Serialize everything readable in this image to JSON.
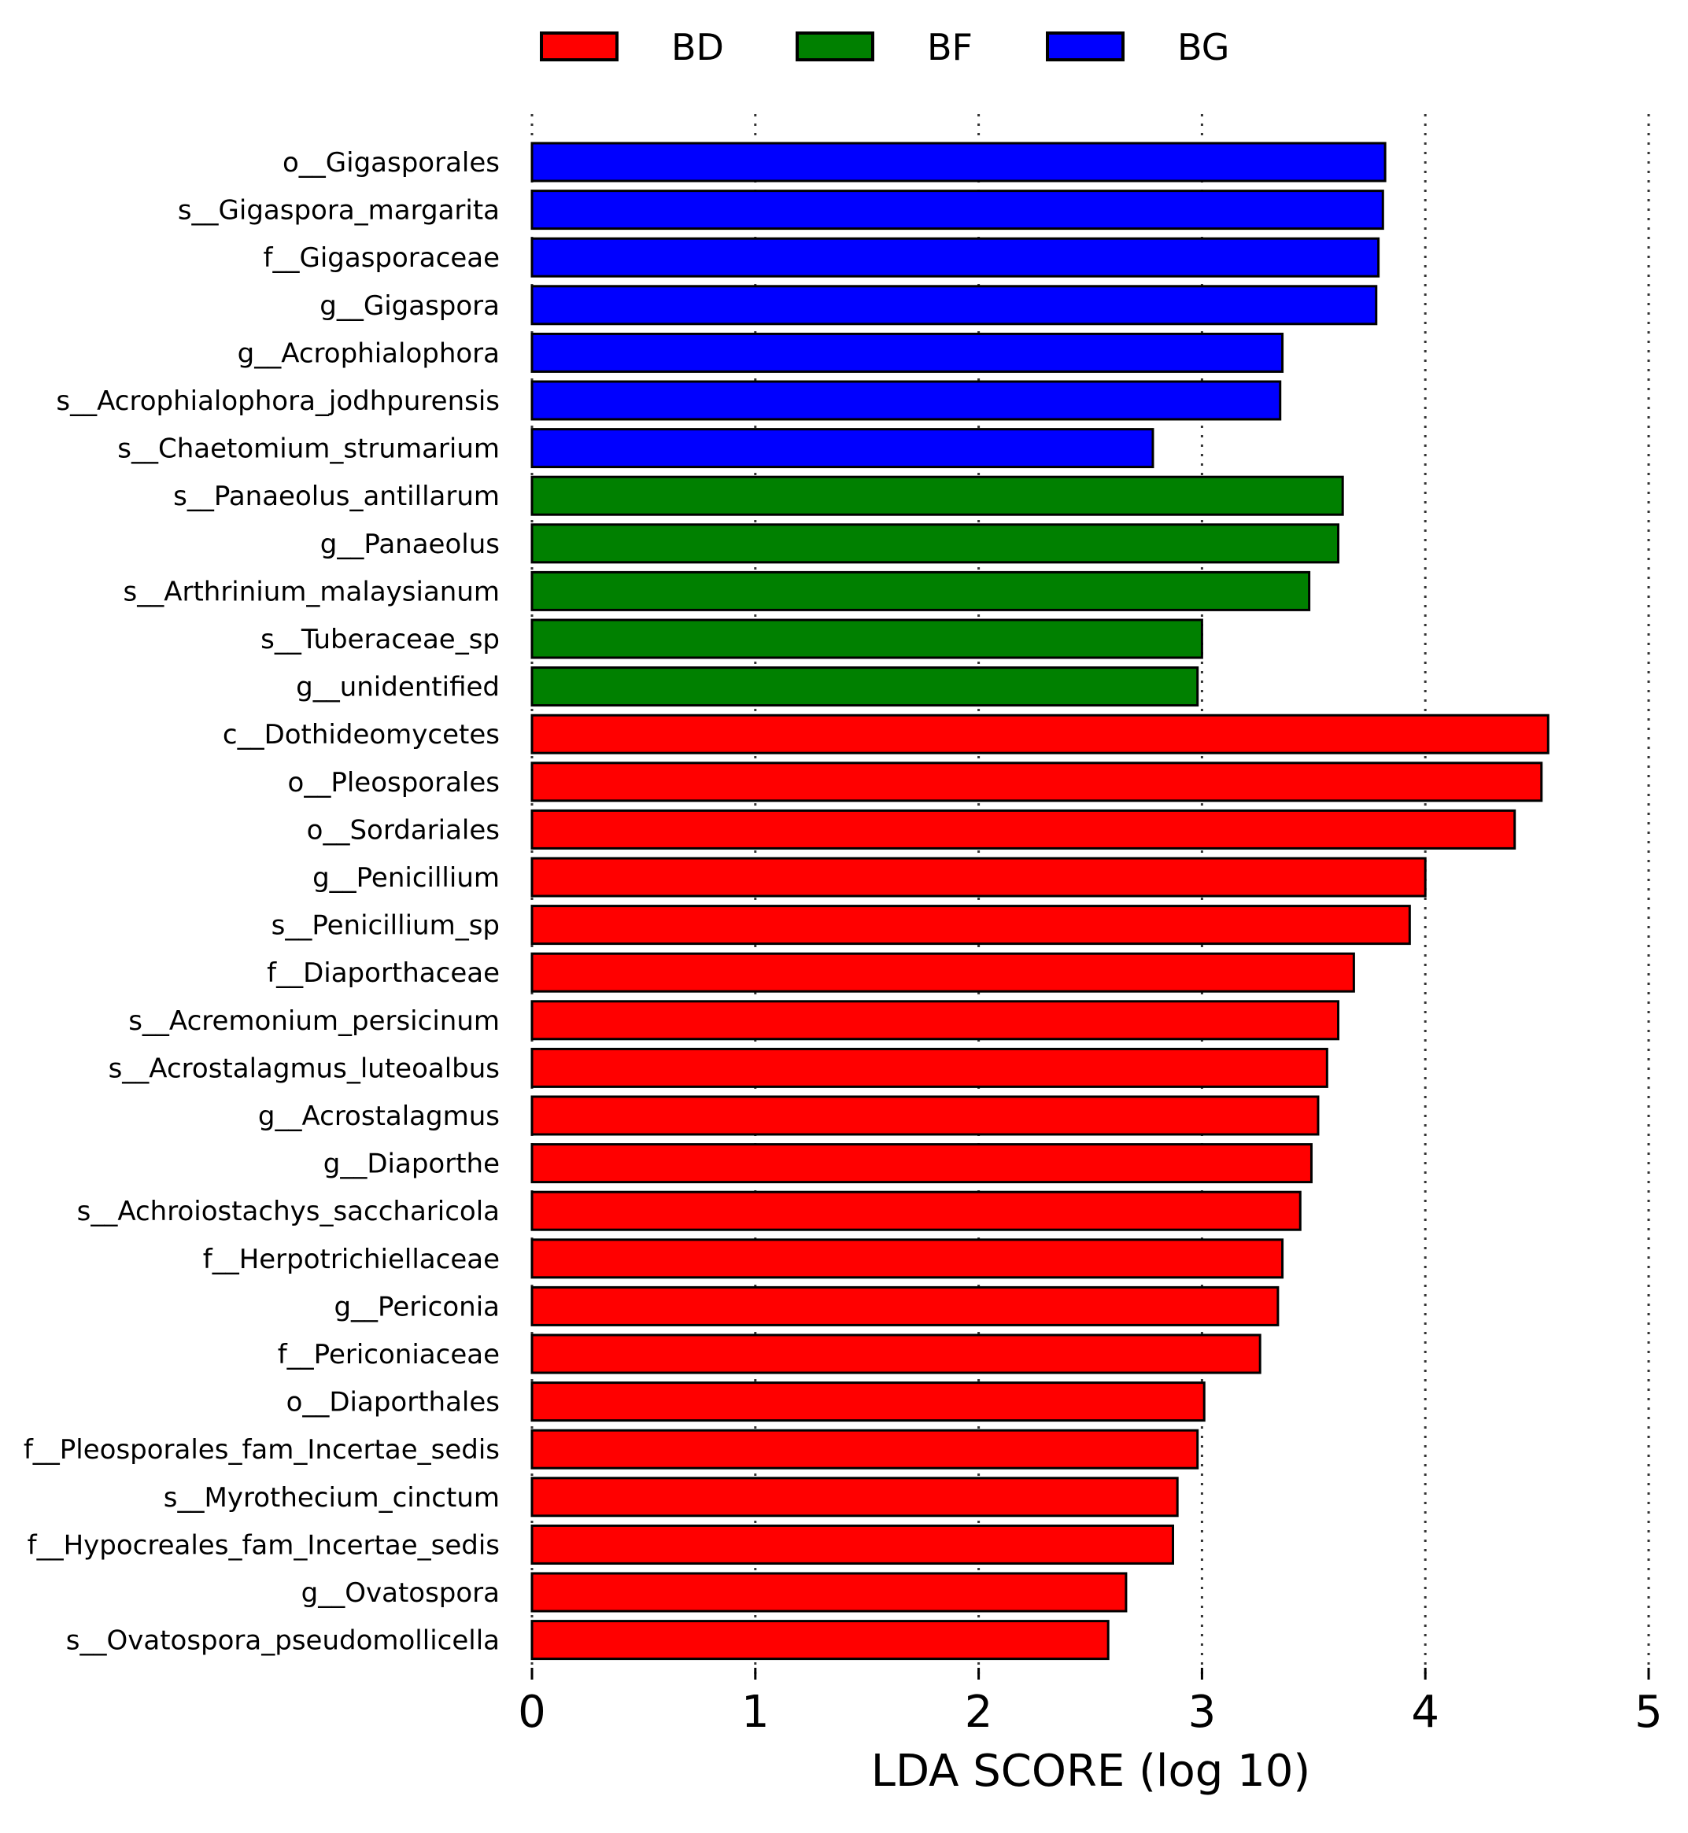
{
  "chart_data": {
    "type": "bar",
    "orientation": "horizontal",
    "xlabel": "LDA SCORE (log 10)",
    "xlim": [
      0,
      5
    ],
    "xticks": [
      "0",
      "1",
      "2",
      "3",
      "4",
      "5"
    ],
    "grid": "vertical-dotted",
    "legend_position": "top",
    "legend": [
      {
        "name": "BD",
        "color": "#ff0000"
      },
      {
        "name": "BF",
        "color": "#008000"
      },
      {
        "name": "BG",
        "color": "#0000ff"
      }
    ],
    "bars": [
      {
        "label": "o__Gigasporales",
        "group": "BG",
        "value": 3.82
      },
      {
        "label": "s__Gigaspora_margarita",
        "group": "BG",
        "value": 3.81
      },
      {
        "label": "f__Gigasporaceae",
        "group": "BG",
        "value": 3.79
      },
      {
        "label": "g__Gigaspora",
        "group": "BG",
        "value": 3.78
      },
      {
        "label": "g__Acrophialophora",
        "group": "BG",
        "value": 3.36
      },
      {
        "label": "s__Acrophialophora_jodhpurensis",
        "group": "BG",
        "value": 3.35
      },
      {
        "label": "s__Chaetomium_strumarium",
        "group": "BG",
        "value": 2.78
      },
      {
        "label": "s__Panaeolus_antillarum",
        "group": "BF",
        "value": 3.63
      },
      {
        "label": "g__Panaeolus",
        "group": "BF",
        "value": 3.61
      },
      {
        "label": "s__Arthrinium_malaysianum",
        "group": "BF",
        "value": 3.48
      },
      {
        "label": "s__Tuberaceae_sp",
        "group": "BF",
        "value": 3.0
      },
      {
        "label": "g__unidentified",
        "group": "BF",
        "value": 2.98
      },
      {
        "label": "c__Dothideomycetes",
        "group": "BD",
        "value": 4.55
      },
      {
        "label": "o__Pleosporales",
        "group": "BD",
        "value": 4.52
      },
      {
        "label": "o__Sordariales",
        "group": "BD",
        "value": 4.4
      },
      {
        "label": "g__Penicillium",
        "group": "BD",
        "value": 4.0
      },
      {
        "label": "s__Penicillium_sp",
        "group": "BD",
        "value": 3.93
      },
      {
        "label": "f__Diaporthaceae",
        "group": "BD",
        "value": 3.68
      },
      {
        "label": "s__Acremonium_persicinum",
        "group": "BD",
        "value": 3.61
      },
      {
        "label": "s__Acrostalagmus_luteoalbus",
        "group": "BD",
        "value": 3.56
      },
      {
        "label": "g__Acrostalagmus",
        "group": "BD",
        "value": 3.52
      },
      {
        "label": "g__Diaporthe",
        "group": "BD",
        "value": 3.49
      },
      {
        "label": "s__Achroiostachys_saccharicola",
        "group": "BD",
        "value": 3.44
      },
      {
        "label": "f__Herpotrichiellaceae",
        "group": "BD",
        "value": 3.36
      },
      {
        "label": "g__Periconia",
        "group": "BD",
        "value": 3.34
      },
      {
        "label": "f__Periconiaceae",
        "group": "BD",
        "value": 3.26
      },
      {
        "label": "o__Diaporthales",
        "group": "BD",
        "value": 3.01
      },
      {
        "label": "f__Pleosporales_fam_Incertae_sedis",
        "group": "BD",
        "value": 2.98
      },
      {
        "label": "s__Myrothecium_cinctum",
        "group": "BD",
        "value": 2.89
      },
      {
        "label": "f__Hypocreales_fam_Incertae_sedis",
        "group": "BD",
        "value": 2.87
      },
      {
        "label": "g__Ovatospora",
        "group": "BD",
        "value": 2.66
      },
      {
        "label": "s__Ovatospora_pseudomollicella",
        "group": "BD",
        "value": 2.58
      }
    ]
  }
}
